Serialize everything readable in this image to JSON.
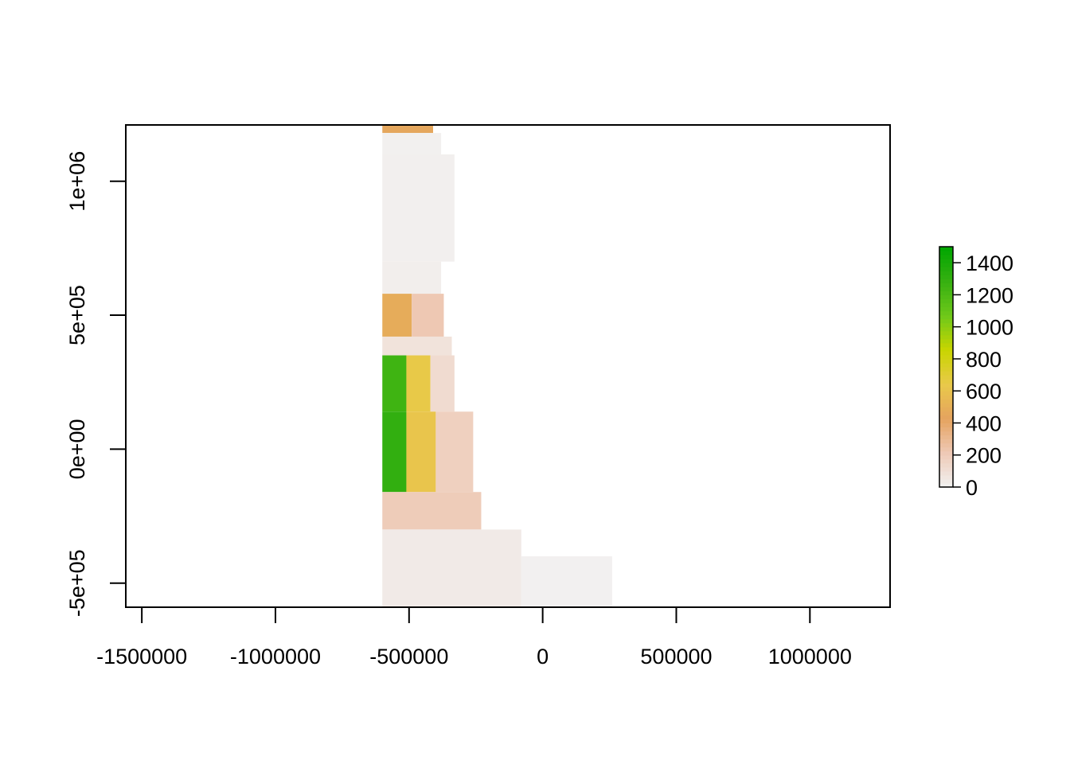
{
  "chart_data": {
    "type": "heatmap",
    "title": "",
    "xlabel": "",
    "ylabel": "",
    "xlim": [
      -1560000,
      1300000
    ],
    "ylim": [
      -590000,
      1210000
    ],
    "x_ticks": [
      {
        "value": -1500000,
        "label": "-1500000"
      },
      {
        "value": -1000000,
        "label": "-1000000"
      },
      {
        "value": -500000,
        "label": "-500000"
      },
      {
        "value": 0,
        "label": "0"
      },
      {
        "value": 500000,
        "label": "500000"
      },
      {
        "value": 1000000,
        "label": "1000000"
      }
    ],
    "y_ticks": [
      {
        "value": -500000,
        "label": "-5e+05"
      },
      {
        "value": 0,
        "label": "0e+00"
      },
      {
        "value": 500000,
        "label": "5e+05"
      },
      {
        "value": 1000000,
        "label": "1e+06"
      }
    ],
    "legend": {
      "placement": "right",
      "min": 0,
      "max": 1500,
      "ticks": [
        {
          "value": 0,
          "label": "0"
        },
        {
          "value": 200,
          "label": "200"
        },
        {
          "value": 400,
          "label": "400"
        },
        {
          "value": 600,
          "label": "600"
        },
        {
          "value": 800,
          "label": "800"
        },
        {
          "value": 1000,
          "label": "1000"
        },
        {
          "value": 1200,
          "label": "1200"
        },
        {
          "value": 1400,
          "label": "1400"
        }
      ],
      "colors": [
        "#f2f2f2",
        "#eec9b5",
        "#e5a35f",
        "#e9c94a",
        "#c9d500",
        "#6ec81a",
        "#36b011",
        "#00a600"
      ]
    },
    "grid": false,
    "regions": [
      {
        "x": [
          -600000,
          -410000
        ],
        "y": [
          1180000,
          1220000
        ],
        "value": 450
      },
      {
        "x": [
          -600000,
          -380000
        ],
        "y": [
          1100000,
          1180000
        ],
        "value": 10
      },
      {
        "x": [
          -600000,
          -330000
        ],
        "y": [
          700000,
          1100000
        ],
        "value": 15
      },
      {
        "x": [
          -600000,
          -380000
        ],
        "y": [
          580000,
          700000
        ],
        "value": 20
      },
      {
        "x": [
          -600000,
          -490000
        ],
        "y": [
          420000,
          580000
        ],
        "value": 480
      },
      {
        "x": [
          -490000,
          -370000
        ],
        "y": [
          420000,
          580000
        ],
        "value": 220
      },
      {
        "x": [
          -600000,
          -340000
        ],
        "y": [
          350000,
          420000
        ],
        "value": 80
      },
      {
        "x": [
          -600000,
          -510000
        ],
        "y": [
          140000,
          350000
        ],
        "value": 1250
      },
      {
        "x": [
          -510000,
          -420000
        ],
        "y": [
          140000,
          350000
        ],
        "value": 650
      },
      {
        "x": [
          -420000,
          -330000
        ],
        "y": [
          140000,
          350000
        ],
        "value": 120
      },
      {
        "x": [
          -600000,
          -510000
        ],
        "y": [
          -160000,
          140000
        ],
        "value": 1300
      },
      {
        "x": [
          -510000,
          -400000
        ],
        "y": [
          -160000,
          140000
        ],
        "value": 620
      },
      {
        "x": [
          -400000,
          -260000
        ],
        "y": [
          -160000,
          140000
        ],
        "value": 180
      },
      {
        "x": [
          -600000,
          -230000
        ],
        "y": [
          -300000,
          -160000
        ],
        "value": 200
      },
      {
        "x": [
          -600000,
          -80000
        ],
        "y": [
          -590000,
          -300000
        ],
        "value": 40
      },
      {
        "x": [
          -80000,
          260000
        ],
        "y": [
          -590000,
          -400000
        ],
        "value": 8
      }
    ]
  }
}
